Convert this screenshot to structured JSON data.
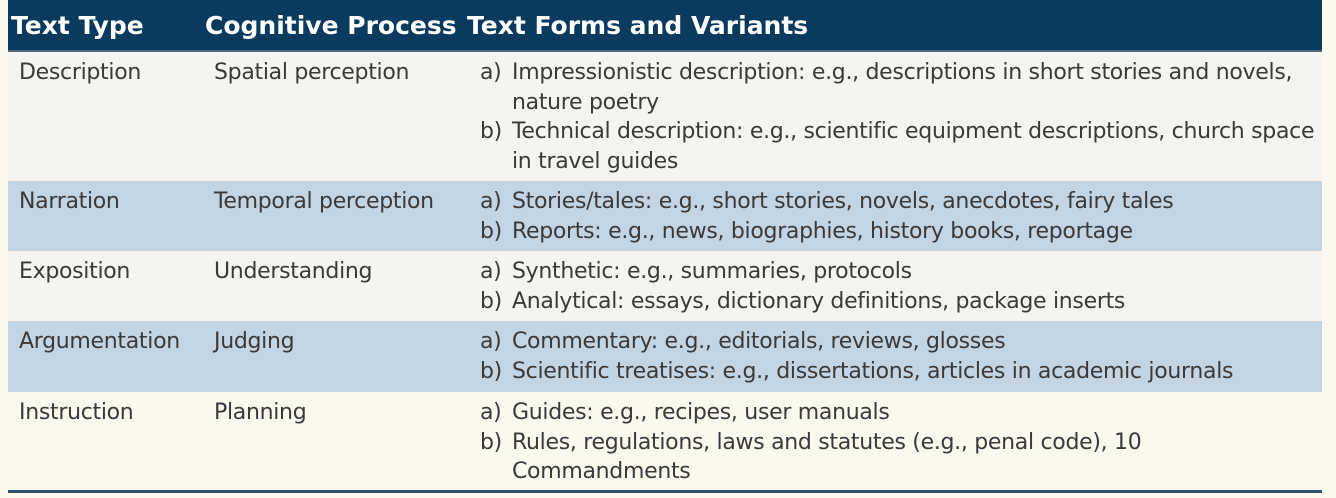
{
  "headers": [
    "Text Type",
    "Cognitive Process",
    "Text Forms and Variants"
  ],
  "rows": [
    {
      "type": "Description",
      "process": "Spatial perception",
      "forms": [
        {
          "marker": "a)",
          "text": "Impressionistic description: e.g., descriptions in short stories and novels, nature poetry"
        },
        {
          "marker": "b)",
          "text": "Technical description: e.g., scientific equipment descriptions, church space in travel guides"
        }
      ]
    },
    {
      "type": "Narration",
      "process": "Temporal perception",
      "forms": [
        {
          "marker": "a)",
          "text": "Stories/tales: e.g., short stories, novels, anecdotes, fairy tales"
        },
        {
          "marker": "b)",
          "text": "Reports: e.g., news, biographies, history books, reportage"
        }
      ]
    },
    {
      "type": "Exposition",
      "process": "Understanding",
      "forms": [
        {
          "marker": "a)",
          "text": "Synthetic: e.g., summaries, protocols"
        },
        {
          "marker": "b)",
          "text": "Analytical: essays, dictionary definitions, package inserts"
        }
      ]
    },
    {
      "type": "Argumentation",
      "process": "Judging",
      "forms": [
        {
          "marker": "a)",
          "text": "Commentary: e.g., editorials, reviews, glosses"
        },
        {
          "marker": "b)",
          "text": "Scientific treatises: e.g., dissertations, articles in academic journals"
        }
      ]
    },
    {
      "type": "Instruction",
      "process": "Planning",
      "forms": [
        {
          "marker": "a)",
          "text": "Guides: e.g., recipes, user manuals"
        },
        {
          "marker": "b)",
          "text": "Rules, regulations, laws and statutes (e.g., penal code), 10 Commandments"
        }
      ]
    }
  ],
  "colors": {
    "header": "#0a3a5e",
    "row_light": "#f5f4ef",
    "row_blue": "#c3d4e2",
    "row_cream": "#fcf8ee"
  }
}
